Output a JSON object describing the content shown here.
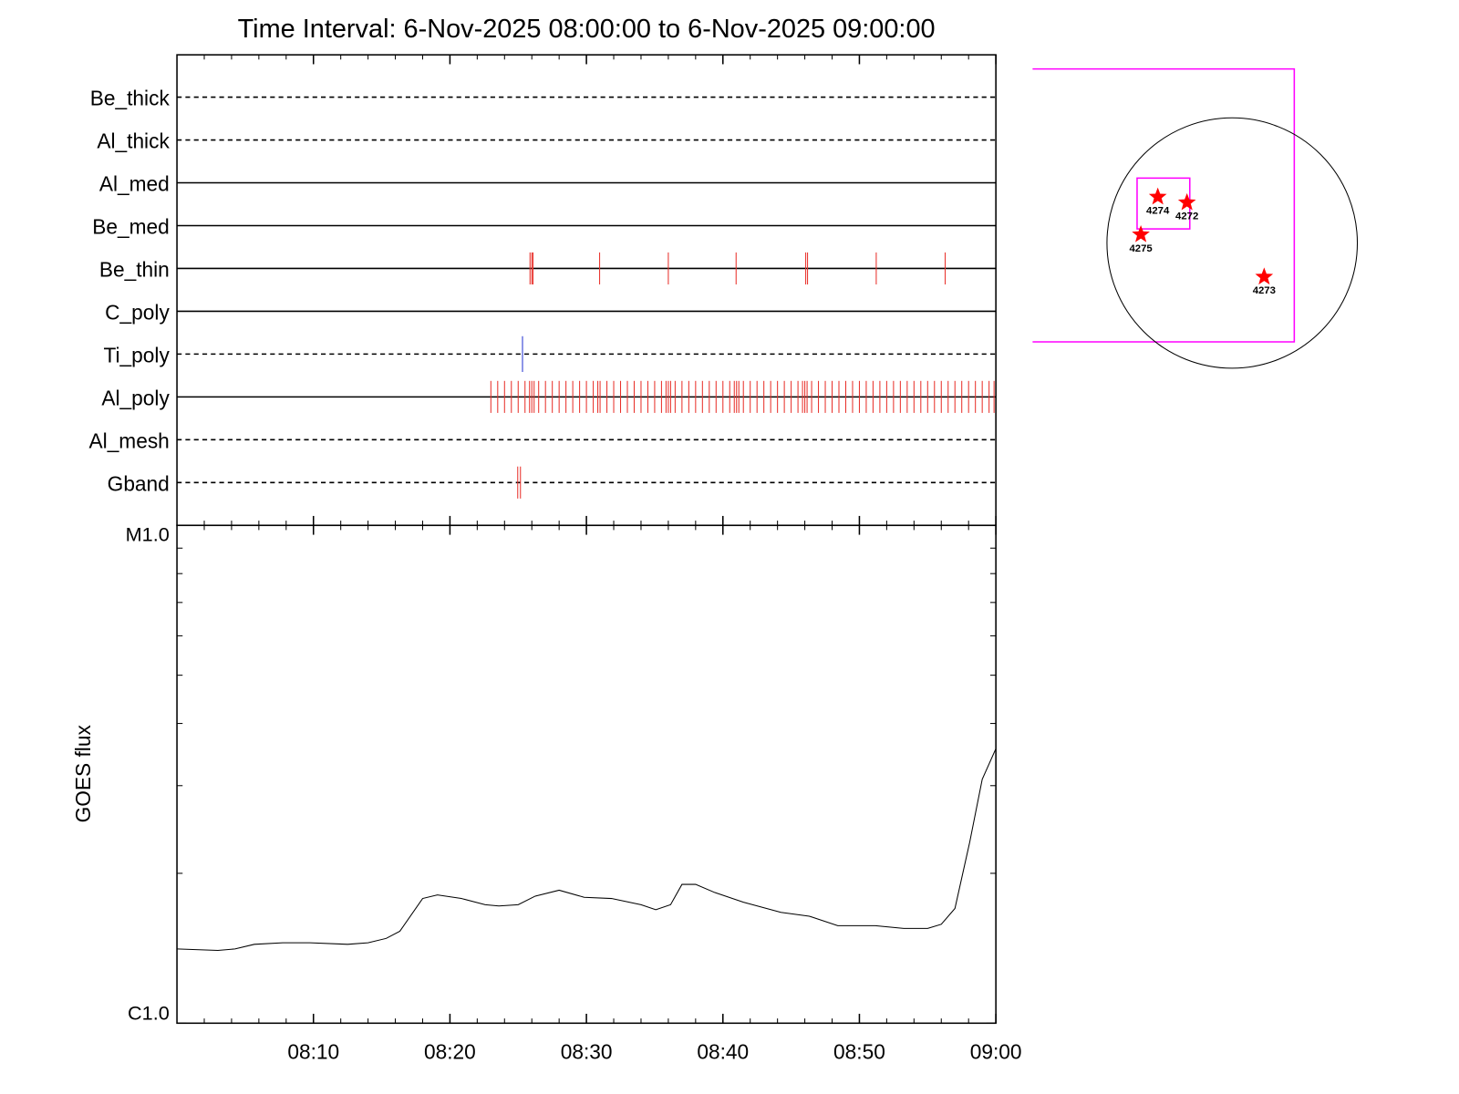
{
  "chart_data": [
    {
      "type": "event",
      "title": "Time Interval:  6-Nov-2025 08:00:00 to  6-Nov-2025 09:00:00",
      "filters": [
        {
          "name": "Be_thick",
          "line": "dashed",
          "times": []
        },
        {
          "name": "Al_thick",
          "line": "dashed",
          "times": []
        },
        {
          "name": "Al_med",
          "line": "solid",
          "times": []
        },
        {
          "name": "Be_med",
          "line": "solid",
          "times": []
        },
        {
          "name": "Be_thin",
          "line": "solid",
          "color": "#e8302a",
          "times": [
            "08:25:52",
            "08:26:00",
            "08:26:05",
            "08:30:58",
            "08:36:00",
            "08:40:58",
            "08:46:04",
            "08:46:12",
            "08:51:14",
            "08:56:17"
          ]
        },
        {
          "name": "C_poly",
          "line": "solid",
          "times": []
        },
        {
          "name": "Ti_poly",
          "line": "dashed",
          "color": "#2030d0",
          "times": [
            "08:25:19"
          ]
        },
        {
          "name": "Al_poly",
          "line": "solid",
          "color": "#e8302a",
          "times": [
            "08:23:00",
            "08:23:30",
            "08:24:00",
            "08:24:30",
            "08:25:00",
            "08:25:30",
            "08:25:50",
            "08:26:00",
            "08:26:10",
            "08:26:30",
            "08:27:00",
            "08:27:30",
            "08:28:00",
            "08:28:30",
            "08:29:00",
            "08:29:30",
            "08:30:00",
            "08:30:30",
            "08:30:50",
            "08:31:00",
            "08:31:30",
            "08:32:00",
            "08:32:30",
            "08:33:00",
            "08:33:30",
            "08:34:00",
            "08:34:30",
            "08:35:00",
            "08:35:30",
            "08:35:50",
            "08:36:00",
            "08:36:10",
            "08:36:30",
            "08:37:00",
            "08:37:30",
            "08:38:00",
            "08:38:30",
            "08:39:00",
            "08:39:30",
            "08:40:00",
            "08:40:30",
            "08:40:50",
            "08:41:00",
            "08:41:10",
            "08:41:30",
            "08:42:00",
            "08:42:30",
            "08:43:00",
            "08:43:30",
            "08:44:00",
            "08:44:30",
            "08:45:00",
            "08:45:30",
            "08:45:50",
            "08:46:00",
            "08:46:10",
            "08:46:30",
            "08:47:00",
            "08:47:30",
            "08:48:00",
            "08:48:30",
            "08:49:00",
            "08:49:30",
            "08:50:00",
            "08:50:30",
            "08:51:00",
            "08:51:30",
            "08:52:00",
            "08:52:30",
            "08:53:00",
            "08:53:30",
            "08:54:00",
            "08:54:30",
            "08:55:00",
            "08:55:30",
            "08:56:00",
            "08:56:30",
            "08:57:00",
            "08:57:30",
            "08:58:00",
            "08:58:30",
            "08:59:00",
            "08:59:30",
            "08:59:52"
          ]
        },
        {
          "name": "Al_mesh",
          "line": "dashed",
          "times": []
        },
        {
          "name": "Gband",
          "line": "dashed",
          "color": "#e8302a",
          "times": [
            "08:24:58",
            "08:25:10"
          ]
        }
      ]
    },
    {
      "type": "line",
      "y_label": "GOES flux",
      "log_scale": true,
      "color": "#000000",
      "x": [
        "08:00:00",
        "08:03:00",
        "08:04:15",
        "08:05:40",
        "08:07:45",
        "08:09:45",
        "08:12:30",
        "08:14:00",
        "08:15:20",
        "08:16:20",
        "08:18:00",
        "08:19:05",
        "08:20:50",
        "08:22:35",
        "08:23:35",
        "08:25:00",
        "08:26:15",
        "08:28:00",
        "08:29:50",
        "08:31:50",
        "08:34:00",
        "08:35:05",
        "08:36:10",
        "08:37:00",
        "08:38:00",
        "08:39:25",
        "08:41:30",
        "08:44:15",
        "08:46:20",
        "08:48:25",
        "08:51:10",
        "08:53:15",
        "08:55:00",
        "08:56:00",
        "08:57:00",
        "08:58:05",
        "08:59:00",
        "09:00:00"
      ],
      "values": [
        1.41e-06,
        1.4e-06,
        1.41e-06,
        1.44e-06,
        1.45e-06,
        1.45e-06,
        1.44e-06,
        1.45e-06,
        1.48e-06,
        1.53e-06,
        1.78e-06,
        1.81e-06,
        1.78e-06,
        1.73e-06,
        1.72e-06,
        1.73e-06,
        1.8e-06,
        1.85e-06,
        1.79e-06,
        1.78e-06,
        1.73e-06,
        1.69e-06,
        1.73e-06,
        1.9e-06,
        1.9e-06,
        1.83e-06,
        1.75e-06,
        1.67e-06,
        1.64e-06,
        1.57e-06,
        1.57e-06,
        1.55e-06,
        1.55e-06,
        1.58e-06,
        1.7e-06,
        2.31e-06,
        3.09e-06,
        3.56e-06
      ],
      "xlim": [
        "08:00",
        "09:00"
      ],
      "xticks": [
        "08:10",
        "08:20",
        "08:30",
        "08:40",
        "08:50",
        "09:00"
      ],
      "xminorticks": [
        "08:02",
        "08:04",
        "08:06",
        "08:08",
        "08:12",
        "08:14",
        "08:16",
        "08:18",
        "08:22",
        "08:24",
        "08:26",
        "08:28",
        "08:32",
        "08:34",
        "08:36",
        "08:38",
        "08:42",
        "08:44",
        "08:46",
        "08:48",
        "08:52",
        "08:54",
        "08:56",
        "08:58"
      ],
      "ylim": [
        1e-06,
        1e-05
      ],
      "yticks": [
        {
          "value": 1e-06,
          "label": "C1.0"
        },
        {
          "value": 1e-05,
          "label": "M1.0"
        }
      ],
      "yminorticks": [
        2e-06,
        3e-06,
        4e-06,
        5e-06,
        6e-06,
        7e-06,
        8e-06,
        9e-06
      ]
    }
  ],
  "context_image": {
    "regions": [
      "4274",
      "4272",
      "4275",
      "4273"
    ]
  }
}
